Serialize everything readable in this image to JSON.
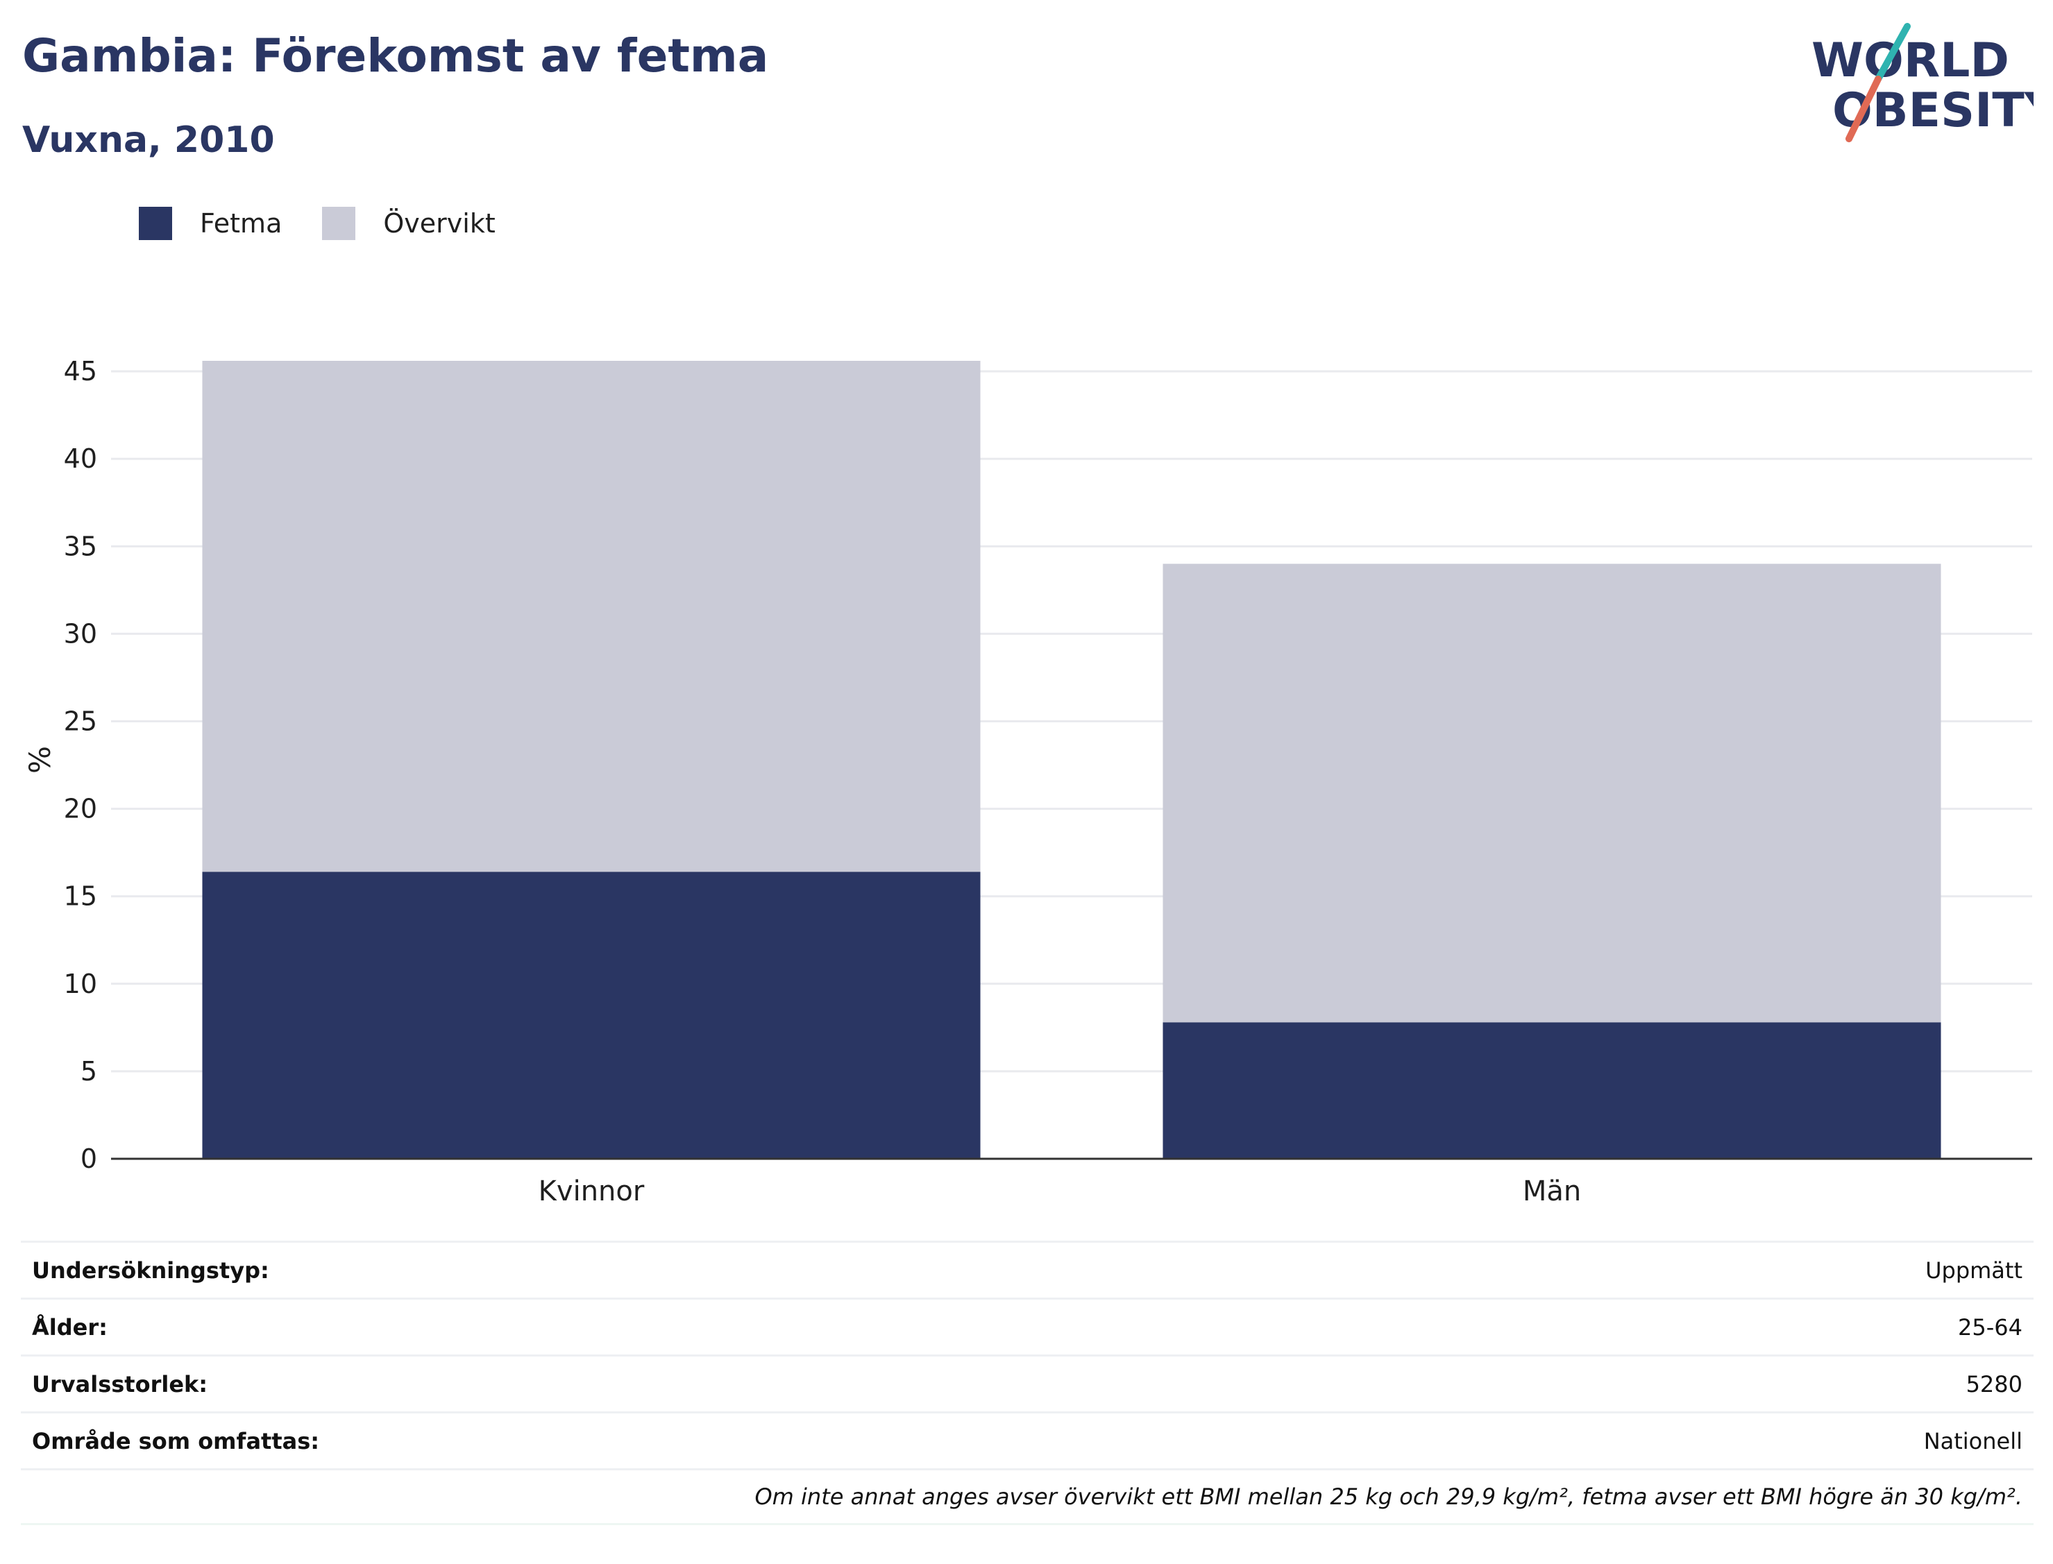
{
  "header": {
    "title": "Gambia: Förekomst av fetma",
    "subtitle": "Vuxna, 2010"
  },
  "logo": {
    "line1": "WORLD",
    "line2": "OBESITY"
  },
  "colors": {
    "fetma": "#2a3663",
    "overvikt": "#cacbd7",
    "text": "#2a3663",
    "accent_teal": "#2fb3b0",
    "accent_red": "#e06a55"
  },
  "chart_data": {
    "type": "bar",
    "stacked": true,
    "categories": [
      "Kvinnor",
      "Män"
    ],
    "series": [
      {
        "name": "Fetma",
        "values": [
          16.4,
          7.8
        ]
      },
      {
        "name": "Övervikt",
        "values": [
          29.2,
          26.2
        ]
      }
    ],
    "ylabel": "%",
    "xlabel": "",
    "ylim": [
      0,
      45
    ],
    "yticks": [
      0,
      5,
      10,
      15,
      20,
      25,
      30,
      35,
      40,
      45
    ],
    "grid": true,
    "legend": "top-left"
  },
  "info": {
    "rows": [
      {
        "label": "Undersökningstyp:",
        "value": "Uppmätt"
      },
      {
        "label": "Ålder:",
        "value": "25-64"
      },
      {
        "label": "Urvalsstorlek:",
        "value": "5280"
      },
      {
        "label": "Område som omfattas:",
        "value": "Nationell"
      }
    ],
    "note": "Om inte annat anges avser övervikt ett BMI mellan 25 kg och 29,9 kg/m², fetma avser ett BMI högre än 30 kg/m²."
  }
}
